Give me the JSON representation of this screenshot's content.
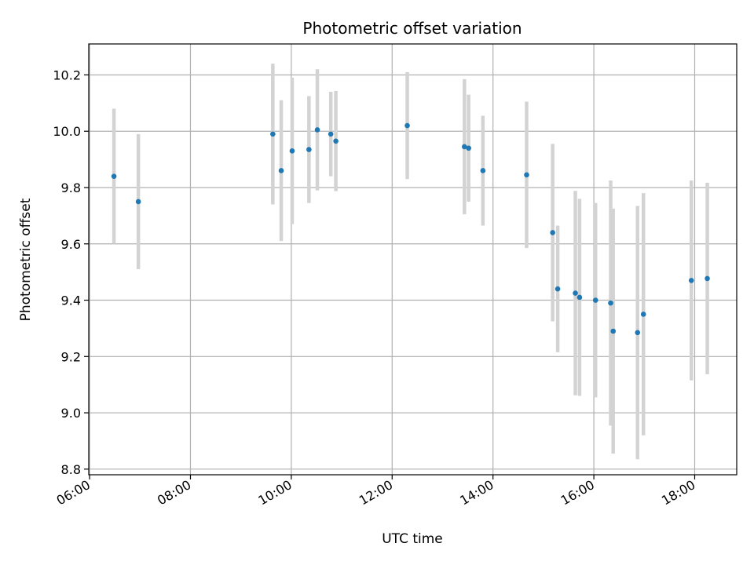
{
  "chart_data": {
    "type": "scatter",
    "title": "Photometric offset variation",
    "xlabel": "UTC time",
    "ylabel": "Photometric offset",
    "grid": true,
    "xlim": [
      "05:59",
      "18:50"
    ],
    "ylim": [
      8.78,
      10.31
    ],
    "x_ticks": [
      "06:00",
      "08:00",
      "10:00",
      "12:00",
      "14:00",
      "16:00",
      "18:00"
    ],
    "y_ticks": [
      "8.8",
      "9.0",
      "9.2",
      "9.4",
      "9.6",
      "9.8",
      "10.0",
      "10.2"
    ],
    "marker_color": "#1f77b4",
    "errorbar_color": "#d3d3d3",
    "points": [
      {
        "time": "06:29",
        "value": 9.84,
        "error": 0.24
      },
      {
        "time": "06:58",
        "value": 9.75,
        "error": 0.24
      },
      {
        "time": "09:38",
        "value": 9.99,
        "error": 0.25
      },
      {
        "time": "09:48",
        "value": 9.86,
        "error": 0.25
      },
      {
        "time": "10:01",
        "value": 9.93,
        "error": 0.26
      },
      {
        "time": "10:21",
        "value": 9.935,
        "error": 0.19
      },
      {
        "time": "10:31",
        "value": 10.005,
        "error": 0.215
      },
      {
        "time": "10:47",
        "value": 9.99,
        "error": 0.15
      },
      {
        "time": "10:53",
        "value": 9.965,
        "error": 0.178
      },
      {
        "time": "12:18",
        "value": 10.02,
        "error": 0.19
      },
      {
        "time": "13:26",
        "value": 9.945,
        "error": 0.24
      },
      {
        "time": "13:31",
        "value": 9.94,
        "error": 0.19
      },
      {
        "time": "13:48",
        "value": 9.86,
        "error": 0.195
      },
      {
        "time": "14:40",
        "value": 9.845,
        "error": 0.26
      },
      {
        "time": "15:11",
        "value": 9.64,
        "error": 0.315
      },
      {
        "time": "15:17",
        "value": 9.44,
        "error": 0.225
      },
      {
        "time": "15:38",
        "value": 9.425,
        "error": 0.363
      },
      {
        "time": "15:43",
        "value": 9.41,
        "error": 0.35
      },
      {
        "time": "16:02",
        "value": 9.4,
        "error": 0.345
      },
      {
        "time": "16:20",
        "value": 9.39,
        "error": 0.435
      },
      {
        "time": "16:23",
        "value": 9.29,
        "error": 0.435
      },
      {
        "time": "16:52",
        "value": 9.285,
        "error": 0.45
      },
      {
        "time": "16:59",
        "value": 9.35,
        "error": 0.43
      },
      {
        "time": "17:56",
        "value": 9.47,
        "error": 0.355
      },
      {
        "time": "18:15",
        "value": 9.477,
        "error": 0.34
      }
    ]
  }
}
